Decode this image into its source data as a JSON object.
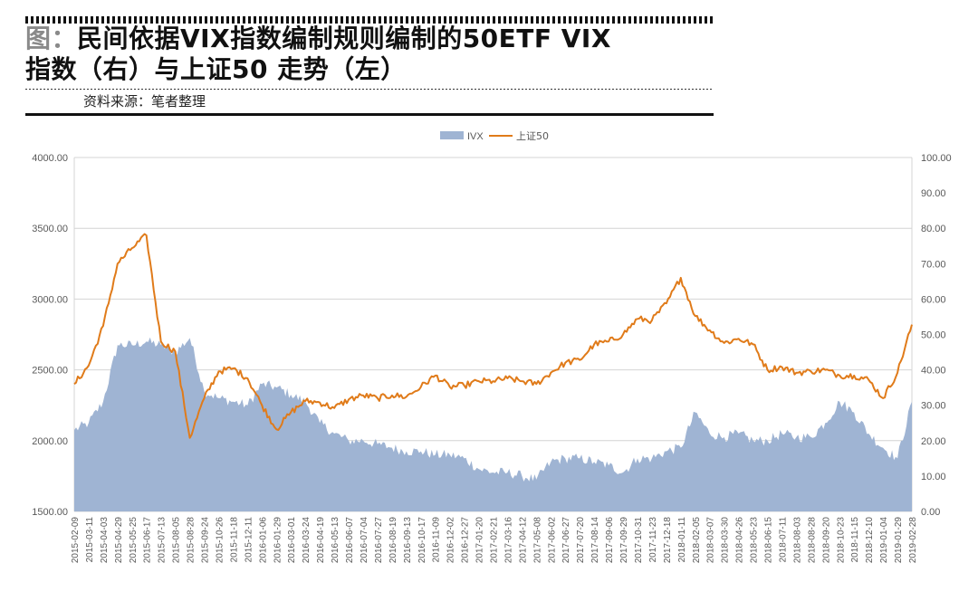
{
  "header": {
    "title_prefix": "图：",
    "title_line1": "民间依据VIX指数编制规则编制的50ETF VIX",
    "title_line2": "指数（右）与上证50 走势（左）",
    "source": "资料来源：笔者整理"
  },
  "colors": {
    "ivx_fill": "#9fb4d3",
    "sz50_line": "#e07b1a",
    "grid": "#d4d4d4",
    "axis_text": "#595959"
  },
  "chart_data": {
    "type": "line+area",
    "legend": {
      "placement": "top-center",
      "items": [
        {
          "name": "IVX",
          "kind": "area"
        },
        {
          "name": "上证50",
          "kind": "line"
        }
      ]
    },
    "x_ticks": [
      "2015-02-09",
      "2015-03-11",
      "2015-04-03",
      "2015-04-29",
      "2015-05-25",
      "2015-06-17",
      "2015-07-13",
      "2015-08-05",
      "2015-08-28",
      "2015-09-24",
      "2015-10-26",
      "2015-11-18",
      "2015-12-11",
      "2016-01-06",
      "2016-01-29",
      "2016-03-01",
      "2016-03-24",
      "2016-04-19",
      "2016-05-13",
      "2016-06-07",
      "2016-07-04",
      "2016-07-27",
      "2016-08-19",
      "2016-09-13",
      "2016-10-17",
      "2016-11-09",
      "2016-12-02",
      "2016-12-27",
      "2017-01-20",
      "2017-02-21",
      "2017-03-16",
      "2017-04-12",
      "2017-05-08",
      "2017-06-02",
      "2017-06-27",
      "2017-07-20",
      "2017-08-14",
      "2017-09-06",
      "2017-09-29",
      "2017-10-31",
      "2017-11-23",
      "2017-12-18",
      "2018-01-11",
      "2018-02-05",
      "2018-03-07",
      "2018-03-30",
      "2018-04-26",
      "2018-05-23",
      "2018-06-15",
      "2018-07-11",
      "2018-08-03",
      "2018-08-28",
      "2018-09-20",
      "2018-10-23",
      "2018-11-15",
      "2018-12-10",
      "2019-01-04",
      "2019-01-29",
      "2019-02-28"
    ],
    "left_axis": {
      "ticks": [
        "1500.00",
        "2000.00",
        "2500.00",
        "3000.00",
        "3500.00",
        "4000.00"
      ],
      "range": [
        1500,
        4000
      ]
    },
    "right_axis": {
      "ticks": [
        "0.00",
        "10.00",
        "20.00",
        "30.00",
        "40.00",
        "50.00",
        "60.00",
        "70.00",
        "80.00",
        "90.00",
        "100.00"
      ],
      "range": [
        0,
        100
      ]
    },
    "series": [
      {
        "name": "上证50",
        "axis": "left",
        "type": "line",
        "values": [
          2400,
          2530,
          2810,
          3250,
          3360,
          3450,
          2700,
          2630,
          2020,
          2300,
          2490,
          2510,
          2440,
          2250,
          2080,
          2200,
          2280,
          2270,
          2230,
          2290,
          2320,
          2300,
          2320,
          2310,
          2380,
          2460,
          2380,
          2390,
          2420,
          2420,
          2440,
          2420,
          2400,
          2480,
          2550,
          2570,
          2680,
          2700,
          2750,
          2860,
          2850,
          2970,
          3150,
          2880,
          2780,
          2690,
          2720,
          2680,
          2500,
          2520,
          2480,
          2490,
          2500,
          2460,
          2460,
          2430,
          2300,
          2480,
          2820
        ]
      },
      {
        "name": "IVX",
        "axis": "right",
        "type": "area",
        "values": [
          23,
          25,
          31,
          47,
          47,
          48,
          47,
          45,
          49,
          34,
          32,
          31,
          30,
          36,
          35,
          33,
          31,
          25,
          22,
          20,
          20,
          19,
          18,
          17,
          17,
          16,
          16,
          15,
          12,
          11,
          11,
          10,
          9,
          14,
          15,
          15,
          14,
          13,
          11,
          15,
          15,
          17,
          18,
          28,
          22,
          21,
          22,
          20,
          20,
          22,
          21,
          21,
          25,
          31,
          28,
          22,
          18,
          15,
          31
        ]
      }
    ]
  }
}
